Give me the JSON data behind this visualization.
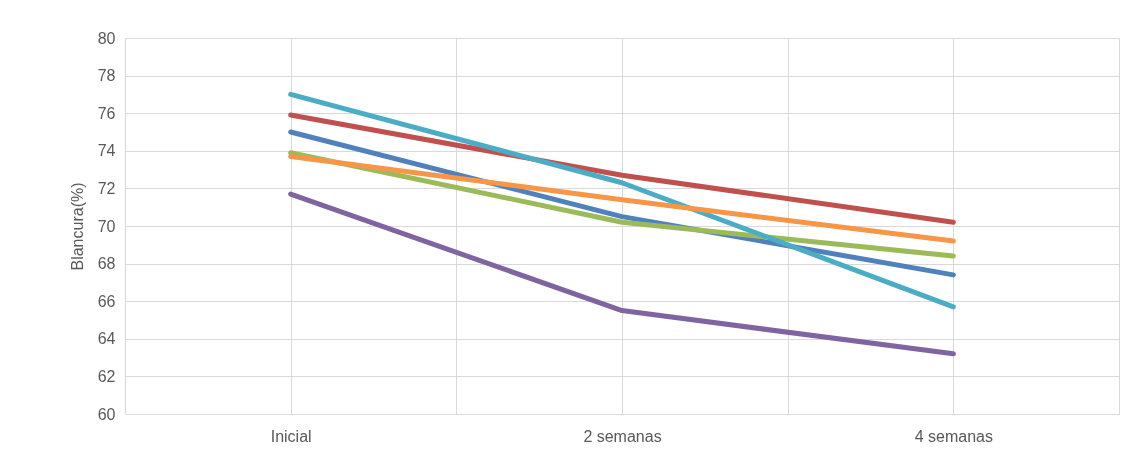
{
  "chart_data": {
    "type": "line",
    "ylabel": "Blancura(%)",
    "categories": [
      null,
      "Inicial",
      null,
      "2 semanas",
      null,
      "4 semanas",
      null
    ],
    "series": [
      {
        "color": "#4f81bd",
        "values": [
          null,
          75.0,
          null,
          70.5,
          null,
          67.4,
          null
        ]
      },
      {
        "color": "#c0504d",
        "values": [
          null,
          75.9,
          null,
          72.7,
          null,
          70.2,
          null
        ]
      },
      {
        "color": "#9bbb59",
        "values": [
          null,
          73.9,
          null,
          70.2,
          null,
          68.4,
          null
        ]
      },
      {
        "color": "#8064a2",
        "values": [
          null,
          71.7,
          null,
          65.5,
          null,
          63.2,
          null
        ]
      },
      {
        "color": "#4bacc6",
        "values": [
          null,
          77.0,
          null,
          72.3,
          null,
          65.7,
          null
        ]
      },
      {
        "color": "#f79646",
        "values": [
          null,
          73.7,
          null,
          71.4,
          null,
          69.2,
          null
        ]
      }
    ],
    "ylim": [
      60,
      80
    ],
    "yticks": [
      60,
      62,
      64,
      66,
      68,
      70,
      72,
      74,
      76,
      78,
      80
    ],
    "grid": true,
    "legend": false,
    "marker": "none",
    "line_style": "solid"
  }
}
